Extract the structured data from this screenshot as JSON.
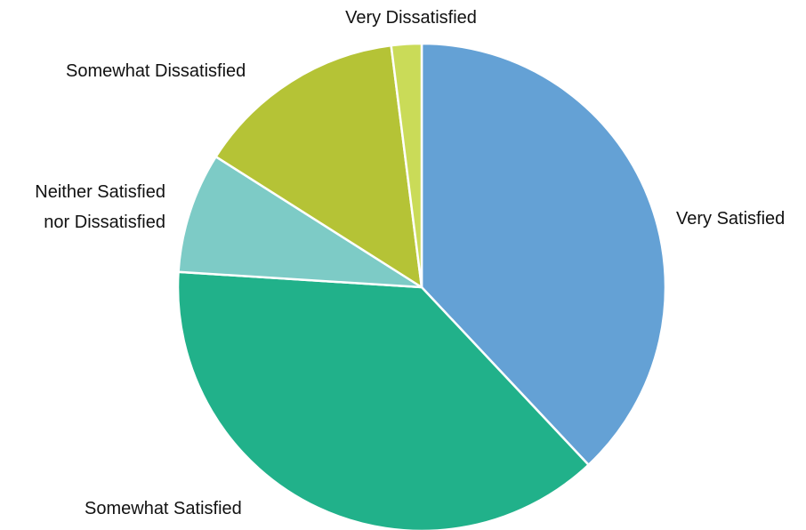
{
  "chart_data": {
    "type": "pie",
    "title": "",
    "categories": [
      "Very Satisfied",
      "Somewhat Satisfied",
      "Neither Satisfied nor Dissatisfied",
      "Somewhat Dissatisfied",
      "Very Dissatisfied"
    ],
    "label_lines": [
      [
        "Very Satisfied"
      ],
      [
        "Somewhat Satisfied"
      ],
      [
        "Neither Satisfied",
        "nor Dissatisfied"
      ],
      [
        "Somewhat Dissatisfied"
      ],
      [
        "Very Dissatisfied"
      ]
    ],
    "values": [
      38,
      38,
      8,
      14,
      2
    ],
    "colors": [
      "#64A1D5",
      "#21B18A",
      "#7DCBC6",
      "#B5C336",
      "#CADB58"
    ],
    "start_angle": "12 o'clock",
    "direction": "clockwise",
    "legend": "none"
  }
}
